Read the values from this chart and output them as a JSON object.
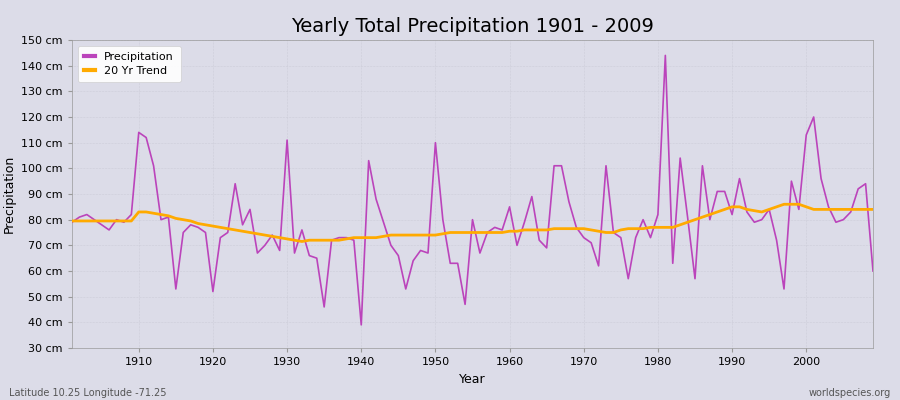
{
  "title": "Yearly Total Precipitation 1901 - 2009",
  "xlabel": "Year",
  "ylabel": "Precipitation",
  "subtitle": "Latitude 10.25 Longitude -71.25",
  "watermark": "worldspecies.org",
  "precip_color": "#bb44bb",
  "trend_color": "#ffaa00",
  "bg_color": "#dcdce8",
  "plot_bg_color": "#dcdce8",
  "ylim": [
    30,
    150
  ],
  "yticks": [
    30,
    40,
    50,
    60,
    70,
    80,
    90,
    100,
    110,
    120,
    130,
    140,
    150
  ],
  "xticks": [
    1910,
    1920,
    1930,
    1940,
    1950,
    1960,
    1970,
    1980,
    1990,
    2000
  ],
  "years": [
    1901,
    1902,
    1903,
    1904,
    1905,
    1906,
    1907,
    1908,
    1909,
    1910,
    1911,
    1912,
    1913,
    1914,
    1915,
    1916,
    1917,
    1918,
    1919,
    1920,
    1921,
    1922,
    1923,
    1924,
    1925,
    1926,
    1927,
    1928,
    1929,
    1930,
    1931,
    1932,
    1933,
    1934,
    1935,
    1936,
    1937,
    1938,
    1939,
    1940,
    1941,
    1942,
    1943,
    1944,
    1945,
    1946,
    1947,
    1948,
    1949,
    1950,
    1951,
    1952,
    1953,
    1954,
    1955,
    1956,
    1957,
    1958,
    1959,
    1960,
    1961,
    1962,
    1963,
    1964,
    1965,
    1966,
    1967,
    1968,
    1969,
    1970,
    1971,
    1972,
    1973,
    1974,
    1975,
    1976,
    1977,
    1978,
    1979,
    1980,
    1981,
    1982,
    1983,
    1984,
    1985,
    1986,
    1987,
    1988,
    1989,
    1990,
    1991,
    1992,
    1993,
    1994,
    1995,
    1996,
    1997,
    1998,
    1999,
    2000,
    2001,
    2002,
    2003,
    2004,
    2005,
    2006,
    2007,
    2008,
    2009
  ],
  "precip": [
    79,
    81,
    82,
    80,
    78,
    76,
    80,
    79,
    82,
    114,
    112,
    101,
    80,
    81,
    53,
    75,
    78,
    77,
    75,
    52,
    73,
    75,
    94,
    78,
    84,
    67,
    70,
    74,
    68,
    111,
    67,
    76,
    66,
    65,
    46,
    72,
    73,
    73,
    72,
    39,
    103,
    88,
    79,
    70,
    66,
    53,
    64,
    68,
    67,
    110,
    80,
    63,
    63,
    47,
    80,
    67,
    75,
    77,
    76,
    85,
    70,
    79,
    89,
    72,
    69,
    101,
    101,
    87,
    77,
    73,
    71,
    62,
    101,
    75,
    73,
    57,
    73,
    80,
    73,
    82,
    144,
    63,
    104,
    81,
    57,
    101,
    80,
    91,
    91,
    82,
    96,
    83,
    79,
    80,
    84,
    72,
    53,
    95,
    84,
    113,
    120,
    96,
    85,
    79,
    80,
    83,
    92,
    94,
    60
  ],
  "trend": [
    79.5,
    79.5,
    79.5,
    79.5,
    79.5,
    79.5,
    79.5,
    79.5,
    79.5,
    83,
    83,
    82.5,
    82,
    81.5,
    80.5,
    80,
    79.5,
    78.5,
    78,
    77.5,
    77,
    76.5,
    76,
    75.5,
    75,
    74.5,
    74,
    73.5,
    73,
    72.5,
    72,
    71.5,
    72,
    72,
    72,
    72,
    72,
    72.5,
    73,
    73,
    73,
    73,
    73.5,
    74,
    74,
    74,
    74,
    74,
    74,
    74,
    74.5,
    75,
    75,
    75,
    75,
    75,
    75,
    75,
    75,
    75.5,
    75.5,
    76,
    76,
    76,
    76,
    76.5,
    76.5,
    76.5,
    76.5,
    76.5,
    76,
    75.5,
    75,
    75,
    76,
    76.5,
    76.5,
    76.5,
    77,
    77,
    77,
    77,
    78,
    79,
    80,
    81,
    82,
    83,
    84,
    85,
    85,
    84,
    83.5,
    83,
    84,
    85,
    86,
    86,
    86,
    85,
    84,
    84,
    84,
    84,
    84,
    84,
    84,
    84,
    84
  ],
  "title_fontsize": 14,
  "axis_label_fontsize": 9,
  "tick_fontsize": 8,
  "legend_fontsize": 8
}
